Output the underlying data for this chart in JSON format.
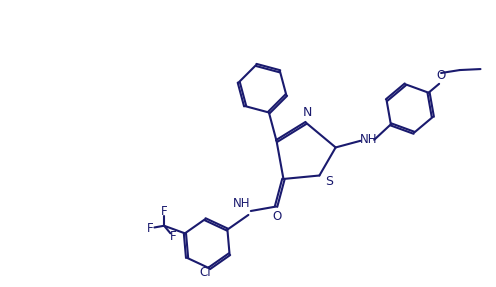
{
  "bg_color": "#ffffff",
  "line_color": "#1a1a6e",
  "lw": 1.5,
  "dbo": 0.022,
  "figsize": [
    4.96,
    2.87
  ],
  "dpi": 100,
  "xlim": [
    0,
    10
  ],
  "ylim": [
    0,
    5.8
  ]
}
